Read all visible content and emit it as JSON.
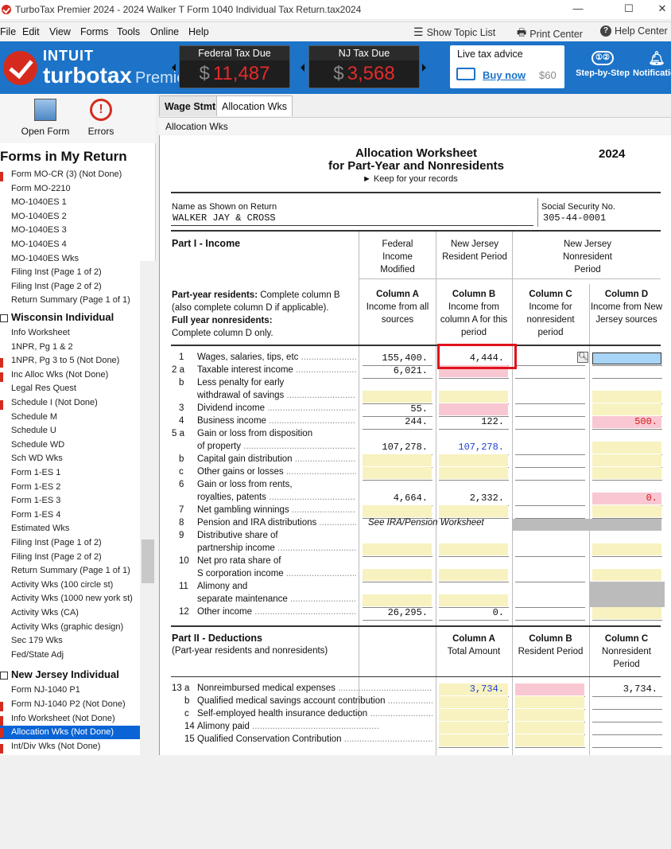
{
  "window": {
    "title": "TurboTax Premier 2024 - 2024 Walker T Form 1040  Individual Tax Return.tax2024",
    "min": "—",
    "max": "☐",
    "close": "✕"
  },
  "menu": [
    "File",
    "Edit",
    "View",
    "Forms",
    "Tools",
    "Online",
    "Help"
  ],
  "toolbar": {
    "topic_list": "Show Topic List",
    "print_center": "Print Center",
    "help_center": "Help Center"
  },
  "header": {
    "brand_top": "INTUIT",
    "brand": "turbotax",
    "edition": "Premier",
    "federal_label": "Federal Tax Due",
    "federal_amount": "11,487",
    "nj_label": "NJ Tax Due",
    "nj_amount": "3,568",
    "currency": "$",
    "advice_title": "Live tax advice",
    "buy_now": "Buy now",
    "price": "$60",
    "step_by_step": "Step-by-Step",
    "notifications": "Notifications",
    "colors": {
      "header_bg": "#1c73c8",
      "tax_amount": "#e62a2a",
      "brand_red": "#d52b1e"
    }
  },
  "sidebar": {
    "open_form": "Open Form",
    "errors": "Errors",
    "heading": "Forms in My Return",
    "group1": [
      {
        "label": "Form MO-CR (3) (Not Done)",
        "error": true
      },
      {
        "label": "Form MO-2210",
        "error": false
      },
      {
        "label": "MO-1040ES 1",
        "error": false
      },
      {
        "label": "MO-1040ES 2",
        "error": false
      },
      {
        "label": "MO-1040ES 3",
        "error": false
      },
      {
        "label": "MO-1040ES 4",
        "error": false
      },
      {
        "label": "MO-1040ES Wks",
        "error": false
      },
      {
        "label": "Filing Inst (Page 1 of 2)",
        "error": false
      },
      {
        "label": "Filing Inst (Page 2 of 2)",
        "error": false
      },
      {
        "label": "Return Summary (Page 1 of 1)",
        "error": false
      }
    ],
    "wisconsin_heading": "Wisconsin Individual",
    "wisconsin": [
      {
        "label": "Info Worksheet",
        "error": false
      },
      {
        "label": "1NPR, Pg 1 & 2",
        "error": false
      },
      {
        "label": "1NPR, Pg 3 to 5 (Not Done)",
        "error": true
      },
      {
        "label": "Inc Alloc Wks (Not Done)",
        "error": true
      },
      {
        "label": "Legal Res Quest",
        "error": false
      },
      {
        "label": "Schedule I (Not Done)",
        "error": true
      },
      {
        "label": "Schedule M",
        "error": false
      },
      {
        "label": "Schedule U",
        "error": false
      },
      {
        "label": "Schedule WD",
        "error": false
      },
      {
        "label": "Sch WD Wks",
        "error": false
      },
      {
        "label": "Form 1-ES 1",
        "error": false
      },
      {
        "label": "Form 1-ES 2",
        "error": false
      },
      {
        "label": "Form 1-ES 3",
        "error": false
      },
      {
        "label": "Form 1-ES 4",
        "error": false
      },
      {
        "label": "Estimated Wks",
        "error": false
      },
      {
        "label": "Filing Inst (Page 1 of 2)",
        "error": false
      },
      {
        "label": "Filing Inst (Page 2 of 2)",
        "error": false
      },
      {
        "label": "Return Summary (Page 1 of 1)",
        "error": false
      },
      {
        "label": "Activity Wks (100 circle st)",
        "error": false
      },
      {
        "label": "Activity Wks (1000 new york st)",
        "error": false
      },
      {
        "label": "Activity Wks (CA)",
        "error": false
      },
      {
        "label": "Activity Wks (graphic design)",
        "error": false
      },
      {
        "label": "Sec 179 Wks",
        "error": false
      },
      {
        "label": "Fed/State Adj",
        "error": false
      }
    ],
    "nj_heading": "New Jersey Individual",
    "nj": [
      {
        "label": "Form NJ-1040 P1",
        "error": false
      },
      {
        "label": "Form NJ-1040 P2 (Not Done)",
        "error": true
      },
      {
        "label": "Info Worksheet (Not Done)",
        "error": true
      },
      {
        "label": "Allocation Wks (Not Done)",
        "error": true,
        "selected": true
      },
      {
        "label": "Int/Div Wks (Not Done)",
        "error": true
      }
    ]
  },
  "tabs": [
    "Wage Stmt",
    "Allocation Wks"
  ],
  "breadcrumb": "Allocation Wks",
  "form": {
    "title1": "Allocation Worksheet",
    "title2": "for Part-Year and Nonresidents",
    "keep": "► Keep for your records",
    "year": "2024",
    "name_label": "Name as Shown on Return",
    "name_value": "WALKER JAY & CROSS",
    "ssn_label": "Social Security No.",
    "ssn_value": "305-44-0001",
    "part1": "Part I - Income",
    "col_groups": [
      "Federal Income Modified",
      "New Jersey Resident Period",
      "New Jersey Nonresident Period"
    ],
    "instr_bold1": "Part-year residents:",
    "instr1": " Complete column B (also complete column D if applicable).",
    "instr_bold2": "Full year nonresidents:",
    "instr2": "Complete column D only.",
    "cols": [
      {
        "h": "Column A",
        "d": "Income from all sources"
      },
      {
        "h": "Column B",
        "d": "Income from column A for this period"
      },
      {
        "h": "Column C",
        "d": "Income for nonresident period"
      },
      {
        "h": "Column D",
        "d": "Income from New Jersey sources"
      }
    ],
    "lines": {
      "l1": {
        "n": "1",
        "t": "Wages, salaries, tips, etc",
        "a": "155,400.",
        "b": "4,444."
      },
      "l2a": {
        "n": "2 a",
        "t": "Taxable interest income",
        "a": "6,021."
      },
      "l2b1": {
        "n": "b",
        "t": "Less penalty for early"
      },
      "l2b2": {
        "t": "withdrawal of savings"
      },
      "l3": {
        "n": "3",
        "t": "Dividend income",
        "a": "55."
      },
      "l4": {
        "n": "4",
        "t": "Business income",
        "a": "244.",
        "b": "122.",
        "d": "500."
      },
      "l5a1": {
        "n": "5 a",
        "t": "Gain or loss from disposition"
      },
      "l5a2": {
        "t": "of property",
        "a": "107,278.",
        "b": "107,278."
      },
      "l5b": {
        "n": "b",
        "t": "Capital gain distribution"
      },
      "l5c": {
        "n": "c",
        "t": "Other gains or losses"
      },
      "l6a": {
        "n": "6",
        "t": "Gain or loss from rents,"
      },
      "l6b": {
        "t": "royalties, patents",
        "a": "4,664.",
        "b": "2,332.",
        "d": "0."
      },
      "l7": {
        "n": "7",
        "t": "Net gambling winnings"
      },
      "l8": {
        "n": "8",
        "t": "Pension and IRA distributions",
        "a": "See IRA/Pension Worksheet"
      },
      "l9a": {
        "n": "9",
        "t": "Distributive share of"
      },
      "l9b": {
        "t": "partnership income"
      },
      "l10a": {
        "n": "10",
        "t": "Net pro rata share of"
      },
      "l10b": {
        "t": "S corporation income"
      },
      "l11a": {
        "n": "11",
        "t": "Alimony and"
      },
      "l11b": {
        "t": "separate maintenance"
      },
      "l12": {
        "n": "12",
        "t": "Other income",
        "a": "26,295.",
        "b": "0."
      }
    },
    "part2": "Part II - Deductions",
    "part2_sub": "(Part-year residents and nonresidents)",
    "cols2": [
      {
        "h": "Column A",
        "d": "Total Amount"
      },
      {
        "h": "Column B",
        "d": "Resident Period"
      },
      {
        "h": "Column C",
        "d": "Nonresident Period"
      }
    ],
    "lines2": {
      "l13a": {
        "n": "13 a",
        "t": "Nonreimbursed medical expenses",
        "a": "3,734.",
        "c": "3,734."
      },
      "l13b": {
        "n": "b",
        "t": "Qualified medical savings account contribution"
      },
      "l13c": {
        "n": "c",
        "t": "Self-employed health insurance deduction"
      },
      "l14": {
        "n": "14",
        "t": "Alimony paid"
      },
      "l15": {
        "n": "15",
        "t": "Qualified Conservation Contribution"
      }
    }
  }
}
